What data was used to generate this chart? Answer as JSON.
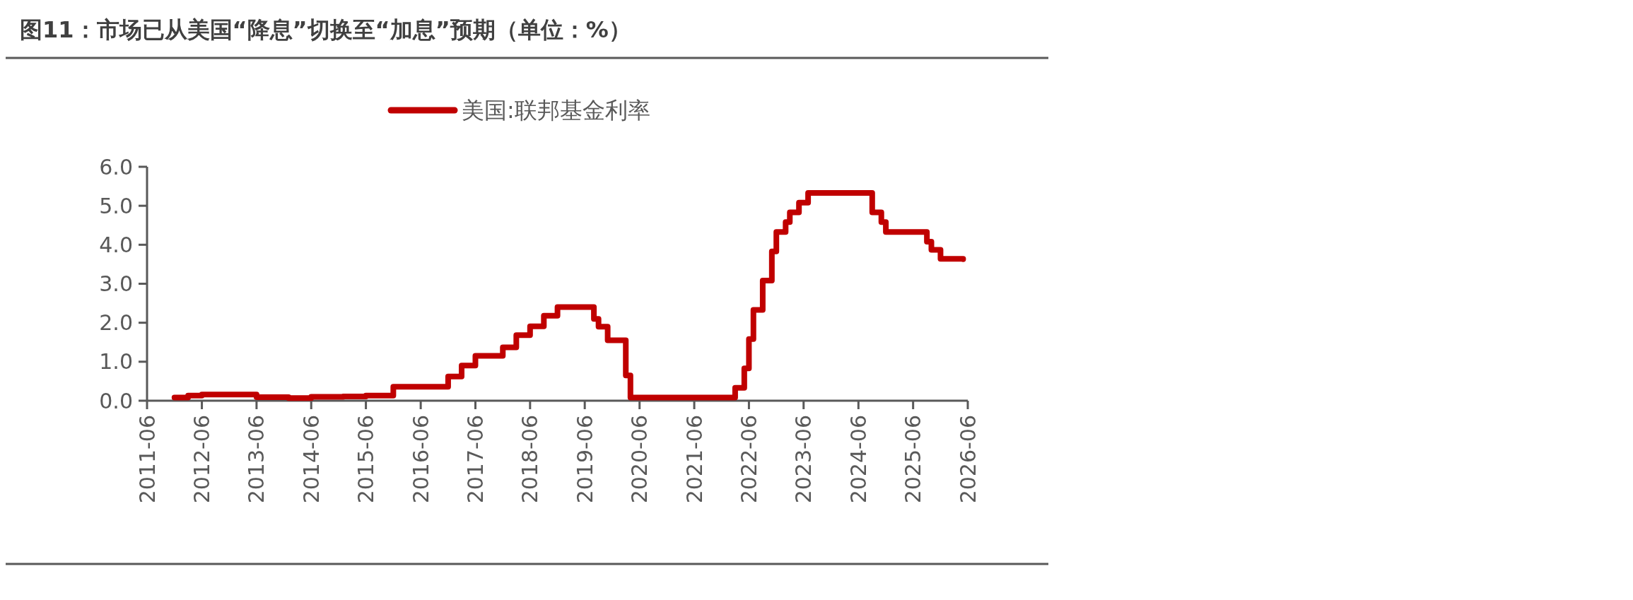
{
  "chart_data": {
    "type": "step",
    "title": "图11：市场已从美国“降息”切换至“加息”预期（单位：%）",
    "x": [
      "2011-12",
      "2012-03",
      "2012-06",
      "2012-12",
      "2013-06",
      "2014-01",
      "2014-06",
      "2015-01",
      "2015-06",
      "2015-12",
      "2016-12",
      "2017-03",
      "2017-06",
      "2017-12",
      "2018-03",
      "2018-06",
      "2018-09",
      "2018-12",
      "2019-08",
      "2019-09",
      "2019-11",
      "2020-03",
      "2020-04",
      "2021-06",
      "2022-03",
      "2022-05",
      "2022-06",
      "2022-07",
      "2022-09",
      "2022-11",
      "2022-12",
      "2023-02",
      "2023-03",
      "2023-05",
      "2023-07",
      "2024-09",
      "2024-11",
      "2024-12",
      "2025-09",
      "2025-10",
      "2025-12",
      "2026-05"
    ],
    "series": [
      {
        "name": "美国:联邦基金利率",
        "color": "#c00000",
        "values": [
          0.08,
          0.13,
          0.16,
          0.16,
          0.09,
          0.07,
          0.1,
          0.11,
          0.13,
          0.36,
          0.62,
          0.9,
          1.15,
          1.37,
          1.68,
          1.91,
          2.18,
          2.4,
          2.1,
          1.9,
          1.55,
          0.65,
          0.08,
          0.08,
          0.33,
          0.83,
          1.58,
          2.33,
          3.08,
          3.83,
          4.33,
          4.58,
          4.83,
          5.08,
          5.33,
          4.83,
          4.58,
          4.33,
          4.08,
          3.87,
          3.64,
          3.63
        ]
      }
    ],
    "xlim": [
      "2011-06",
      "2026-06"
    ],
    "xticks": [
      "2011-06",
      "2012-06",
      "2013-06",
      "2014-06",
      "2015-06",
      "2016-06",
      "2017-06",
      "2018-06",
      "2019-06",
      "2020-06",
      "2021-06",
      "2022-06",
      "2023-06",
      "2024-06",
      "2025-06",
      "2026-06"
    ],
    "ylim": [
      0,
      6
    ],
    "yticks": [
      {
        "value": 0,
        "label": "0.0"
      },
      {
        "value": 1,
        "label": "1.0"
      },
      {
        "value": 2,
        "label": "2.0"
      },
      {
        "value": 3,
        "label": "3.0"
      },
      {
        "value": 4,
        "label": "4.0"
      },
      {
        "value": 5,
        "label": "5.0"
      },
      {
        "value": 6,
        "label": "6.0"
      }
    ],
    "grid": false,
    "legend": "top",
    "marker": "none",
    "line_style": "solid"
  }
}
